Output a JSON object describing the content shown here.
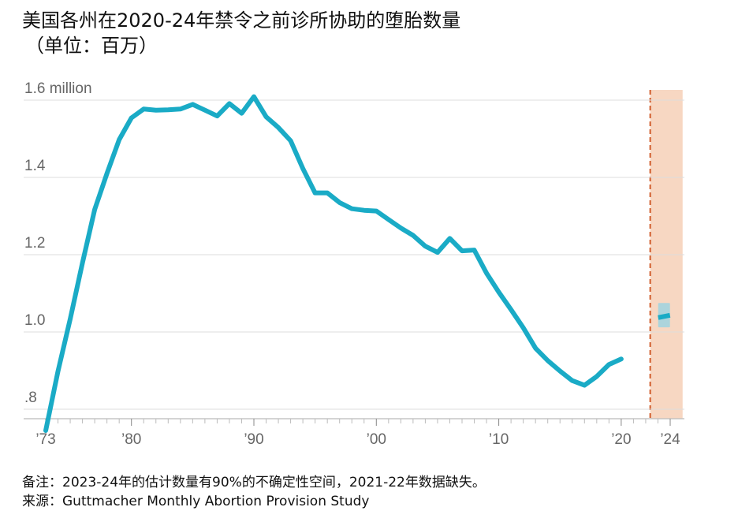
{
  "title": {
    "line1": "美国各州在2020-24年禁令之前诊所协助的堕胎数量",
    "line2": "（单位：百万）"
  },
  "colors": {
    "line": "#1aabc6",
    "band": "#f7d7c2",
    "dash": "#d4683a",
    "grid": "#dcdcdc",
    "axis_text": "#666666",
    "estimate_band": "#9fd3e1"
  },
  "chart_data": {
    "type": "line",
    "title": "美国各州在2020-24年禁令之前诊所协助的堕胎数量（单位：百万）",
    "xlabel": "",
    "ylabel": "",
    "xlim": [
      1973,
      2024
    ],
    "ylim": [
      0.75,
      1.61
    ],
    "y_ticks": [
      {
        "value": 1.6,
        "label": "1.6 million"
      },
      {
        "value": 1.4,
        "label": "1.4"
      },
      {
        "value": 1.2,
        "label": "1.2"
      },
      {
        "value": 1.0,
        "label": "1.0"
      },
      {
        "value": 0.8,
        "label": ".8"
      }
    ],
    "x_ticks": [
      {
        "value": 1973,
        "label": "’73"
      },
      {
        "value": 1980,
        "label": "’80"
      },
      {
        "value": 1990,
        "label": "’90"
      },
      {
        "value": 2000,
        "label": "’00"
      },
      {
        "value": 2010,
        "label": "’10"
      },
      {
        "value": 2020,
        "label": "’20"
      },
      {
        "value": 2024,
        "label": "’24"
      }
    ],
    "series": [
      {
        "name": "诊所协助的堕胎数量",
        "x": [
          1973,
          1974,
          1975,
          1976,
          1977,
          1978,
          1979,
          1980,
          1981,
          1982,
          1983,
          1984,
          1985,
          1986,
          1987,
          1988,
          1989,
          1990,
          1991,
          1992,
          1993,
          1994,
          1995,
          1996,
          1997,
          1998,
          1999,
          2000,
          2001,
          2002,
          2003,
          2004,
          2005,
          2006,
          2007,
          2008,
          2009,
          2010,
          2011,
          2012,
          2013,
          2014,
          2015,
          2016,
          2017,
          2018,
          2019,
          2020
        ],
        "values": [
          0.745,
          0.898,
          1.034,
          1.179,
          1.317,
          1.41,
          1.498,
          1.554,
          1.577,
          1.574,
          1.575,
          1.577,
          1.589,
          1.574,
          1.559,
          1.591,
          1.566,
          1.609,
          1.557,
          1.529,
          1.495,
          1.423,
          1.36,
          1.36,
          1.335,
          1.319,
          1.315,
          1.313,
          1.291,
          1.269,
          1.25,
          1.222,
          1.206,
          1.242,
          1.21,
          1.212,
          1.152,
          1.103,
          1.058,
          1.011,
          0.958,
          0.926,
          0.899,
          0.874,
          0.862,
          0.885,
          0.916,
          0.93
        ]
      }
    ],
    "estimate": {
      "x": 2023.5,
      "value": 1.037,
      "low": 1.012,
      "high": 1.075
    },
    "missing_years": [
      2021,
      2022
    ],
    "highlight_band": [
      2022.5,
      2024.5
    ]
  },
  "footnotes": {
    "note": "备注：2023-24年的估计数量有90%的不确定性空间，2021-22年数据缺失。",
    "source": "来源：Guttmacher Monthly Abortion Provision Study"
  }
}
